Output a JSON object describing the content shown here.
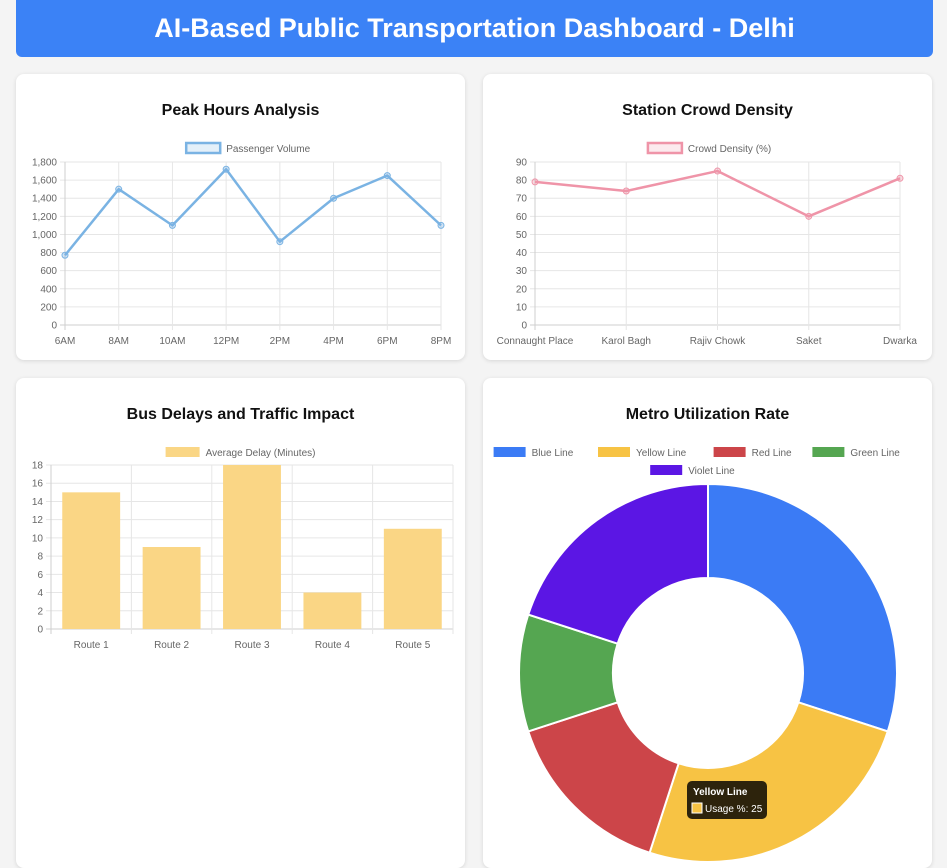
{
  "header": {
    "title": "AI-Based Public Transportation Dashboard - Delhi"
  },
  "charts": {
    "peak": {
      "title": "Peak Hours Analysis",
      "legend": "Passenger Volume",
      "color": "#7ab3e3"
    },
    "crowd": {
      "title": "Station Crowd Density",
      "legend": "Crowd Density (%)",
      "color": "#ef94a8"
    },
    "delay": {
      "title": "Bus Delays and Traffic Impact",
      "legend": "Average Delay (Minutes)",
      "color": "#fad685"
    },
    "metro": {
      "title": "Metro Utilization Rate",
      "tooltip_title": "Yellow Line",
      "tooltip_label": "Usage %: 25"
    }
  },
  "chart_data": [
    {
      "type": "line",
      "title": "Peak Hours Analysis",
      "categories": [
        "6AM",
        "8AM",
        "10AM",
        "12PM",
        "2PM",
        "4PM",
        "6PM",
        "8PM"
      ],
      "series": [
        {
          "name": "Passenger Volume",
          "values": [
            770,
            1500,
            1100,
            1720,
            920,
            1400,
            1650,
            1100
          ]
        }
      ],
      "yticks": [
        "0",
        "200",
        "400",
        "600",
        "800",
        "1,000",
        "1,200",
        "1,400",
        "1,600",
        "1,800"
      ],
      "ylim": [
        0,
        1800
      ],
      "grid": true,
      "legend": "top"
    },
    {
      "type": "line",
      "title": "Station Crowd Density",
      "categories": [
        "Connaught Place",
        "Karol Bagh",
        "Rajiv Chowk",
        "Saket",
        "Dwarka"
      ],
      "series": [
        {
          "name": "Crowd Density (%)",
          "values": [
            79,
            74,
            85,
            60,
            81
          ]
        }
      ],
      "yticks": [
        "0",
        "10",
        "20",
        "30",
        "40",
        "50",
        "60",
        "70",
        "80",
        "90"
      ],
      "ylim": [
        0,
        90
      ],
      "grid": true,
      "legend": "top"
    },
    {
      "type": "bar",
      "title": "Bus Delays and Traffic Impact",
      "categories": [
        "Route 1",
        "Route 2",
        "Route 3",
        "Route 4",
        "Route 5"
      ],
      "series": [
        {
          "name": "Average Delay (Minutes)",
          "values": [
            15,
            9,
            18,
            4,
            11
          ]
        }
      ],
      "yticks": [
        "0",
        "2",
        "4",
        "6",
        "8",
        "10",
        "12",
        "14",
        "16",
        "18"
      ],
      "ylim": [
        0,
        18
      ],
      "grid": true,
      "legend": "top"
    },
    {
      "type": "pie",
      "title": "Metro Utilization Rate",
      "categories": [
        "Blue Line",
        "Yellow Line",
        "Red Line",
        "Green Line",
        "Violet Line"
      ],
      "values": [
        30,
        25,
        15,
        10,
        20
      ],
      "colors": [
        "#3b7bf5",
        "#f7c344",
        "#cc4549",
        "#55a651",
        "#5b16e4"
      ],
      "legend": "top"
    }
  ]
}
